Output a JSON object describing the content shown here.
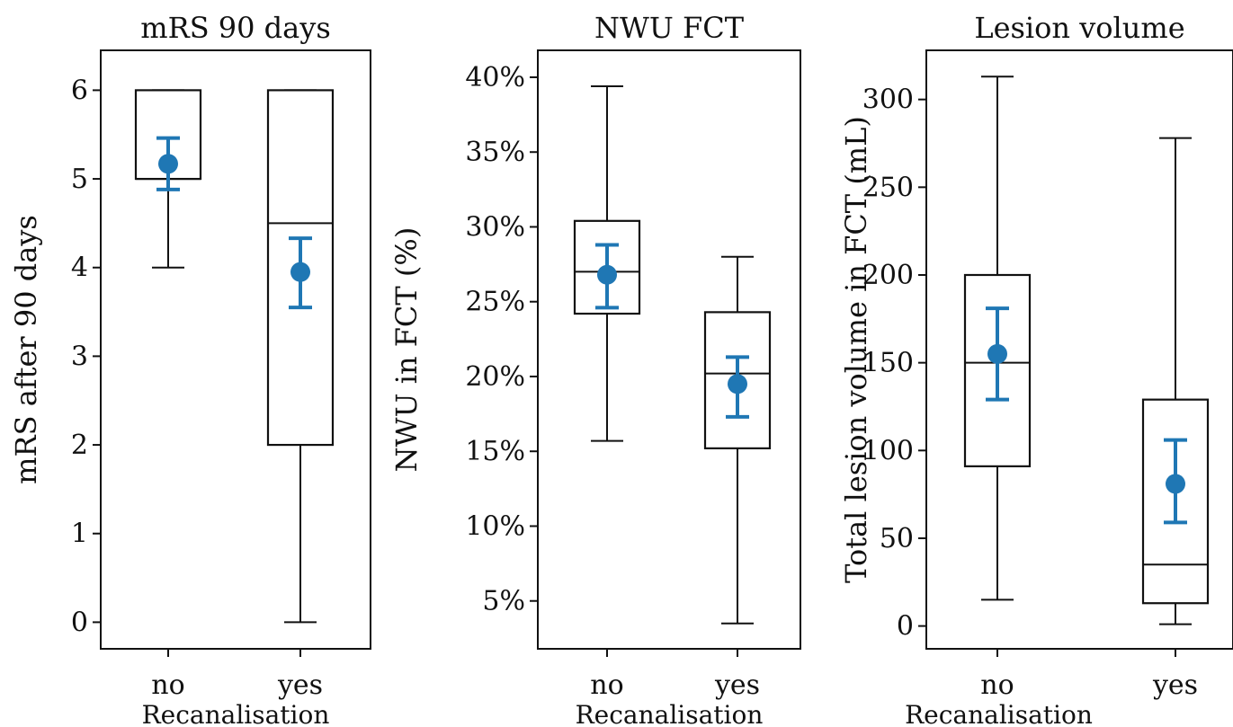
{
  "chart_data": [
    {
      "type": "box",
      "title": "mRS 90 days",
      "xlabel": "Recanalisation",
      "ylabel": "mRS after 90 days",
      "categories": [
        "no",
        "yes"
      ],
      "ylim": [
        -0.3,
        6.45
      ],
      "yticks": [
        0,
        1,
        2,
        3,
        4,
        5,
        6
      ],
      "ytick_labels": [
        "0",
        "1",
        "2",
        "3",
        "4",
        "5",
        "6"
      ],
      "boxes": [
        {
          "category": "no",
          "whisker_low": 4,
          "q1": 5,
          "median": 5,
          "q3": 6,
          "whisker_high": 6
        },
        {
          "category": "yes",
          "whisker_low": 0,
          "q1": 2,
          "median": 4.5,
          "q3": 6,
          "whisker_high": 6
        }
      ],
      "means": [
        {
          "category": "no",
          "mean": 5.17,
          "ci_low": 4.88,
          "ci_high": 5.46
        },
        {
          "category": "yes",
          "mean": 3.95,
          "ci_low": 3.55,
          "ci_high": 4.33
        }
      ]
    },
    {
      "type": "box",
      "title": "NWU FCT",
      "xlabel": "Recanalisation",
      "ylabel": "NWU in FCT (%)",
      "categories": [
        "no",
        "yes"
      ],
      "ylim": [
        1.8,
        41.8
      ],
      "yticks": [
        5,
        10,
        15,
        20,
        25,
        30,
        35,
        40
      ],
      "ytick_labels": [
        "5%",
        "10%",
        "15%",
        "20%",
        "25%",
        "30%",
        "35%",
        "40%"
      ],
      "boxes": [
        {
          "category": "no",
          "whisker_low": 15.7,
          "q1": 24.2,
          "median": 27.0,
          "q3": 30.4,
          "whisker_high": 39.4
        },
        {
          "category": "yes",
          "whisker_low": 3.5,
          "q1": 15.2,
          "median": 20.2,
          "q3": 24.3,
          "whisker_high": 28.0
        }
      ],
      "means": [
        {
          "category": "no",
          "mean": 26.8,
          "ci_low": 24.6,
          "ci_high": 28.8
        },
        {
          "category": "yes",
          "mean": 19.5,
          "ci_low": 17.3,
          "ci_high": 21.3
        }
      ]
    },
    {
      "type": "box",
      "title": "Lesion volume",
      "xlabel": "Recanalisation",
      "ylabel": "Total lesion volume in FCT (mL)",
      "categories": [
        "no",
        "yes"
      ],
      "ylim": [
        -13,
        328
      ],
      "yticks": [
        0,
        50,
        100,
        150,
        200,
        250,
        300
      ],
      "ytick_labels": [
        "0",
        "50",
        "100",
        "150",
        "200",
        "250",
        "300"
      ],
      "boxes": [
        {
          "category": "no",
          "whisker_low": 15,
          "q1": 91,
          "median": 150,
          "q3": 200,
          "whisker_high": 313
        },
        {
          "category": "yes",
          "whisker_low": 1,
          "q1": 13,
          "median": 35,
          "q3": 129,
          "whisker_high": 278
        }
      ],
      "means": [
        {
          "category": "no",
          "mean": 155,
          "ci_low": 129,
          "ci_high": 181
        },
        {
          "category": "yes",
          "mean": 81,
          "ci_low": 59,
          "ci_high": 106
        }
      ]
    }
  ],
  "colors": {
    "mean_marker": "#1f77b4",
    "box_edge": "#111111"
  }
}
